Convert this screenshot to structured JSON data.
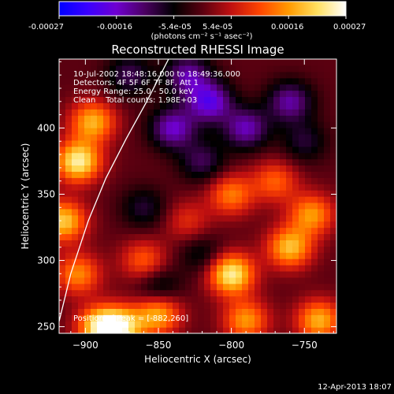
{
  "colorbar": {
    "tick_labels": [
      "-0.00027",
      "-0.00016",
      "-5.4e-05",
      "5.4e-05",
      "0.00016",
      "0.00027"
    ],
    "units_label": "(photons cm⁻² s⁻¹ asec⁻²)",
    "range": [
      -0.00027,
      0.00027
    ],
    "colormap": [
      "#0000ff",
      "#3a00ff",
      "#6f00d0",
      "#4a0060",
      "#000000",
      "#5a0010",
      "#c01010",
      "#ff4500",
      "#ff9a00",
      "#ffe060",
      "#ffffff"
    ]
  },
  "chart_data": {
    "type": "heatmap",
    "title": "Reconstructed RHESSI Image",
    "xlabel": "Heliocentric X (arcsec)",
    "ylabel": "Heliocentric Y (arcsec)",
    "xlim": [
      -918,
      -728
    ],
    "ylim": [
      245,
      452
    ],
    "xticks": [
      -900,
      -850,
      -800,
      -750
    ],
    "yticks": [
      250,
      300,
      350,
      400
    ],
    "xtick_labels": [
      "−900",
      "−850",
      "−800",
      "−750"
    ],
    "ytick_labels": [
      "250",
      "300",
      "350",
      "400"
    ],
    "annotations": [
      "10-Jul-2002 18:48:16.000 to 18:49:36.000",
      "Detectors: 4F 5F 6F 7F 8F, Att 1",
      "Energy Range: 25.0 - 50.0 keV",
      "Clean    Total counts: 1.98E+03"
    ],
    "peak_label": "Position of Peak = [-882,260]",
    "peak": [
      -882,
      260
    ],
    "grid": false,
    "limb_curve": [
      [
        -918,
        254
      ],
      [
        -910,
        290
      ],
      [
        -898,
        330
      ],
      [
        -886,
        362
      ],
      [
        -872,
        392
      ],
      [
        -858,
        420
      ],
      [
        -843,
        452
      ]
    ],
    "components": [
      {
        "x": -905,
        "y": 375,
        "value": 0.00024
      },
      {
        "x": -895,
        "y": 405,
        "value": 0.00018
      },
      {
        "x": -915,
        "y": 330,
        "value": 0.0002
      },
      {
        "x": -905,
        "y": 290,
        "value": 0.00015
      },
      {
        "x": -890,
        "y": 250,
        "value": 0.00022
      },
      {
        "x": -875,
        "y": 250,
        "value": 0.0002
      },
      {
        "x": -860,
        "y": 300,
        "value": 0.00012
      },
      {
        "x": -850,
        "y": 260,
        "value": 0.00018
      },
      {
        "x": -800,
        "y": 290,
        "value": 0.00024
      },
      {
        "x": -790,
        "y": 255,
        "value": 0.00016
      },
      {
        "x": -760,
        "y": 310,
        "value": 0.00019
      },
      {
        "x": -745,
        "y": 335,
        "value": 0.00016
      },
      {
        "x": -740,
        "y": 255,
        "value": 0.00018
      },
      {
        "x": -770,
        "y": 360,
        "value": 0.00012
      },
      {
        "x": -800,
        "y": 350,
        "value": 0.00014
      },
      {
        "x": -830,
        "y": 330,
        "value": 8e-05
      },
      {
        "x": -840,
        "y": 400,
        "value": -0.00016
      },
      {
        "x": -815,
        "y": 420,
        "value": -0.00018
      },
      {
        "x": -790,
        "y": 400,
        "value": -0.00015
      },
      {
        "x": -760,
        "y": 420,
        "value": -0.00014
      },
      {
        "x": -870,
        "y": 440,
        "value": -0.0001
      },
      {
        "x": -830,
        "y": 440,
        "value": -0.00014
      },
      {
        "x": -860,
        "y": 340,
        "value": -8e-05
      },
      {
        "x": -820,
        "y": 375,
        "value": -0.0001
      },
      {
        "x": -850,
        "y": 280,
        "value": -9e-05
      },
      {
        "x": -820,
        "y": 305,
        "value": -7e-05
      },
      {
        "x": -750,
        "y": 390,
        "value": -8e-05
      }
    ]
  },
  "footer_timestamp": "12-Apr-2013 18:07"
}
